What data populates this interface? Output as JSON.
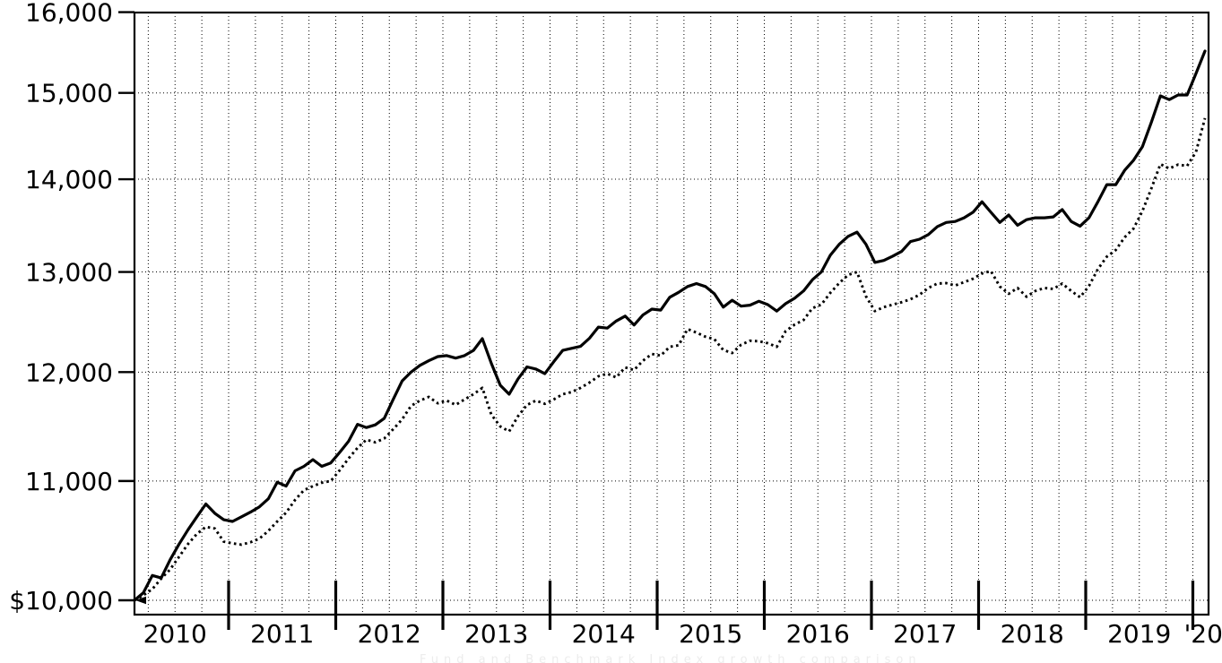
{
  "chart_data": {
    "type": "line",
    "title": "",
    "y_scale": "log",
    "grid": true,
    "legend_position": "none",
    "x_axis": {
      "unit": "month",
      "start": "2010-02",
      "end": "2020-02",
      "gridline_interval": "quarterly",
      "years": [
        "2010",
        "2011",
        "2012",
        "2013",
        "2014",
        "2015",
        "2016",
        "2017",
        "2018",
        "2019",
        "'20"
      ]
    },
    "y_axis": {
      "range_shown": [
        9890,
        16000
      ],
      "ticks": [
        {
          "label": "16,000",
          "value": 16000
        },
        {
          "label": "15,000",
          "value": 15000
        },
        {
          "label": "14,000",
          "value": 14000
        },
        {
          "label": "13,000",
          "value": 13000
        },
        {
          "label": "12,000",
          "value": 12000
        },
        {
          "label": "11,000",
          "value": 11000
        },
        {
          "label": "$10,000",
          "value": 10000
        }
      ]
    },
    "series": [
      {
        "name": "fund",
        "style": "solid",
        "color": "#000000",
        "values": [
          10000,
          10060,
          10200,
          10180,
          10330,
          10460,
          10580,
          10690,
          10800,
          10720,
          10665,
          10650,
          10690,
          10730,
          10775,
          10845,
          10990,
          10955,
          11090,
          11130,
          11190,
          11130,
          11160,
          11255,
          11355,
          11510,
          11480,
          11505,
          11565,
          11740,
          11915,
          12000,
          12065,
          12110,
          12150,
          12160,
          12135,
          12160,
          12210,
          12325,
          12085,
          11875,
          11790,
          11935,
          12050,
          12030,
          11985,
          12100,
          12210,
          12230,
          12250,
          12330,
          12440,
          12430,
          12500,
          12550,
          12460,
          12560,
          12620,
          12610,
          12740,
          12790,
          12850,
          12880,
          12850,
          12775,
          12640,
          12710,
          12650,
          12660,
          12700,
          12665,
          12600,
          12675,
          12730,
          12805,
          12920,
          13000,
          13175,
          13290,
          13375,
          13420,
          13290,
          13100,
          13120,
          13165,
          13215,
          13320,
          13345,
          13395,
          13480,
          13525,
          13535,
          13575,
          13635,
          13750,
          13635,
          13525,
          13605,
          13495,
          13555,
          13575,
          13575,
          13585,
          13665,
          13535,
          13485,
          13575,
          13750,
          13940,
          13940,
          14100,
          14215,
          14370,
          14655,
          14965,
          14920,
          14975,
          14975,
          15235,
          15510
        ]
      },
      {
        "name": "benchmark-index",
        "style": "dotted",
        "color": "#000000",
        "values": [
          10000,
          10040,
          10090,
          10175,
          10250,
          10355,
          10460,
          10545,
          10605,
          10590,
          10480,
          10465,
          10455,
          10475,
          10505,
          10570,
          10650,
          10725,
          10835,
          10920,
          10955,
          10985,
          11000,
          11095,
          11200,
          11295,
          11370,
          11345,
          11380,
          11465,
          11555,
          11680,
          11730,
          11765,
          11705,
          11730,
          11690,
          11740,
          11790,
          11850,
          11600,
          11490,
          11445,
          11585,
          11690,
          11730,
          11700,
          11740,
          11790,
          11810,
          11850,
          11900,
          11960,
          11985,
          11950,
          12045,
          12020,
          12110,
          12175,
          12160,
          12245,
          12260,
          12420,
          12385,
          12345,
          12320,
          12215,
          12185,
          12265,
          12305,
          12300,
          12280,
          12245,
          12400,
          12465,
          12510,
          12630,
          12665,
          12785,
          12885,
          12970,
          13000,
          12750,
          12600,
          12640,
          12665,
          12690,
          12720,
          12765,
          12835,
          12880,
          12885,
          12860,
          12895,
          12930,
          12985,
          13010,
          12850,
          12775,
          12835,
          12745,
          12805,
          12835,
          12825,
          12880,
          12805,
          12740,
          12855,
          13030,
          13160,
          13230,
          13365,
          13460,
          13650,
          13900,
          14170,
          14120,
          14165,
          14150,
          14310,
          14700
        ]
      }
    ],
    "annotations": {
      "start_value_marker": "left-arrow at $10,000 gridline"
    }
  },
  "caption": {
    "text": "Fund and Benchmark Index growth comparison"
  },
  "colors": {
    "line": "#000000",
    "grid": "#000000",
    "background": "#ffffff",
    "caption": "#ececec"
  }
}
